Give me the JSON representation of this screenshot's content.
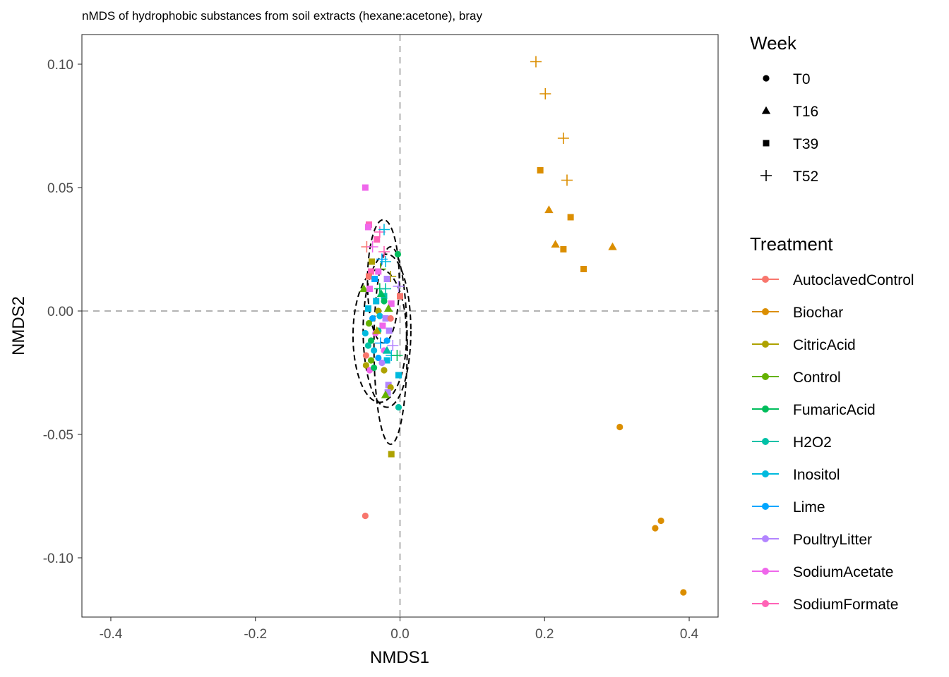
{
  "chart_data": {
    "type": "scatter",
    "title": "nMDS of hydrophobic substances from soil extracts (hexane:acetone), bray",
    "xlabel": "NMDS1",
    "ylabel": "NMDS2",
    "xlim": [
      -0.44,
      0.44
    ],
    "ylim": [
      -0.124,
      0.112
    ],
    "x_ticks": [
      -0.4,
      -0.2,
      0.0,
      0.2,
      0.4
    ],
    "x_tick_labels": [
      "-0.4",
      "-0.2",
      "0.0",
      "0.2",
      "0.4"
    ],
    "y_ticks": [
      -0.1,
      -0.05,
      0.0,
      0.05,
      0.1
    ],
    "y_tick_labels": [
      "-0.10",
      "-0.05",
      "0.00",
      "0.05",
      "0.10"
    ],
    "grid": false,
    "reference_lines": {
      "x": 0,
      "y": 0,
      "style": "dashed",
      "color": "#b3b3b3"
    },
    "legend_placement": "right",
    "shape_legend": {
      "title": "Week",
      "items": [
        {
          "label": "T0",
          "shape": "circle"
        },
        {
          "label": "T16",
          "shape": "triangle"
        },
        {
          "label": "T39",
          "shape": "square"
        },
        {
          "label": "T52",
          "shape": "plus"
        }
      ]
    },
    "color_legend": {
      "title": "Treatment",
      "items": [
        {
          "label": "AutoclavedControl",
          "color": "#F8766D"
        },
        {
          "label": "Biochar",
          "color": "#DB8E00"
        },
        {
          "label": "CitricAcid",
          "color": "#AEA200"
        },
        {
          "label": "Control",
          "color": "#64B200"
        },
        {
          "label": "FumaricAcid",
          "color": "#00BD5C"
        },
        {
          "label": "H2O2",
          "color": "#00C1A7"
        },
        {
          "label": "Inositol",
          "color": "#00BADE"
        },
        {
          "label": "Lime",
          "color": "#00A6FF"
        },
        {
          "label": "PoultryLitter",
          "color": "#B385FF"
        },
        {
          "label": "SodiumAcetate",
          "color": "#EF67EB"
        },
        {
          "label": "SodiumFormate",
          "color": "#FF63B6"
        }
      ]
    },
    "ellipses": [
      {
        "cx": -0.023,
        "cy": 0.012,
        "rx": 0.022,
        "ry": 0.025
      },
      {
        "cx": -0.018,
        "cy": -0.008,
        "rx": 0.033,
        "ry": 0.031
      },
      {
        "cx": -0.028,
        "cy": -0.01,
        "rx": 0.037,
        "ry": 0.027
      },
      {
        "cx": -0.013,
        "cy": -0.014,
        "rx": 0.023,
        "ry": 0.04
      }
    ],
    "points": [
      {
        "x": 0.188,
        "y": 0.101,
        "week": "T52",
        "treatment": "Biochar"
      },
      {
        "x": 0.201,
        "y": 0.088,
        "week": "T52",
        "treatment": "Biochar"
      },
      {
        "x": 0.226,
        "y": 0.07,
        "week": "T52",
        "treatment": "Biochar"
      },
      {
        "x": 0.231,
        "y": 0.053,
        "week": "T52",
        "treatment": "Biochar"
      },
      {
        "x": 0.194,
        "y": 0.057,
        "week": "T39",
        "treatment": "Biochar"
      },
      {
        "x": 0.236,
        "y": 0.038,
        "week": "T39",
        "treatment": "Biochar"
      },
      {
        "x": 0.226,
        "y": 0.025,
        "week": "T39",
        "treatment": "Biochar"
      },
      {
        "x": 0.254,
        "y": 0.017,
        "week": "T39",
        "treatment": "Biochar"
      },
      {
        "x": 0.206,
        "y": 0.041,
        "week": "T16",
        "treatment": "Biochar"
      },
      {
        "x": 0.215,
        "y": 0.027,
        "week": "T16",
        "treatment": "Biochar"
      },
      {
        "x": 0.294,
        "y": 0.026,
        "week": "T16",
        "treatment": "Biochar"
      },
      {
        "x": 0.304,
        "y": -0.047,
        "week": "T0",
        "treatment": "Biochar"
      },
      {
        "x": 0.361,
        "y": -0.085,
        "week": "T0",
        "treatment": "Biochar"
      },
      {
        "x": 0.353,
        "y": -0.088,
        "week": "T0",
        "treatment": "Biochar"
      },
      {
        "x": 0.392,
        "y": -0.114,
        "week": "T0",
        "treatment": "Biochar"
      },
      {
        "x": -0.048,
        "y": -0.083,
        "week": "T0",
        "treatment": "AutoclavedControl"
      },
      {
        "x": -0.012,
        "y": -0.058,
        "week": "T39",
        "treatment": "CitricAcid"
      },
      {
        "x": -0.048,
        "y": 0.05,
        "week": "T39",
        "treatment": "SodiumAcetate"
      },
      {
        "x": -0.043,
        "y": 0.035,
        "week": "T39",
        "treatment": "SodiumFormate"
      },
      {
        "x": -0.044,
        "y": 0.034,
        "week": "T39",
        "treatment": "SodiumAcetate"
      },
      {
        "x": -0.028,
        "y": 0.032,
        "week": "T52",
        "treatment": "SodiumFormate"
      },
      {
        "x": -0.022,
        "y": 0.033,
        "week": "T52",
        "treatment": "Inositol"
      },
      {
        "x": -0.032,
        "y": 0.029,
        "week": "T39",
        "treatment": "SodiumFormate"
      },
      {
        "x": -0.046,
        "y": 0.026,
        "week": "T52",
        "treatment": "AutoclavedControl"
      },
      {
        "x": -0.038,
        "y": 0.026,
        "week": "T52",
        "treatment": "SodiumAcetate"
      },
      {
        "x": -0.022,
        "y": 0.024,
        "week": "T52",
        "treatment": "SodiumFormate"
      },
      {
        "x": -0.025,
        "y": 0.021,
        "week": "T52",
        "treatment": "Lime"
      },
      {
        "x": -0.02,
        "y": 0.02,
        "week": "T52",
        "treatment": "Inositol"
      },
      {
        "x": -0.003,
        "y": 0.023,
        "week": "T0",
        "treatment": "FumaricAcid"
      },
      {
        "x": -0.039,
        "y": 0.02,
        "week": "T39",
        "treatment": "CitricAcid"
      },
      {
        "x": -0.027,
        "y": 0.017,
        "week": "T52",
        "treatment": "Control"
      },
      {
        "x": -0.03,
        "y": 0.016,
        "week": "T39",
        "treatment": "SodiumAcetate"
      },
      {
        "x": -0.04,
        "y": 0.016,
        "week": "T39",
        "treatment": "SodiumFormate"
      },
      {
        "x": -0.043,
        "y": 0.014,
        "week": "T39",
        "treatment": "AutoclavedControl"
      },
      {
        "x": -0.013,
        "y": 0.014,
        "week": "T52",
        "treatment": "CitricAcid"
      },
      {
        "x": -0.018,
        "y": 0.013,
        "week": "T39",
        "treatment": "PoultryLitter"
      },
      {
        "x": -0.035,
        "y": 0.013,
        "week": "T39",
        "treatment": "Lime"
      },
      {
        "x": -0.05,
        "y": 0.009,
        "week": "T16",
        "treatment": "Control"
      },
      {
        "x": -0.028,
        "y": 0.009,
        "week": "T52",
        "treatment": "FumaricAcid"
      },
      {
        "x": -0.02,
        "y": 0.009,
        "week": "T52",
        "treatment": "H2O2"
      },
      {
        "x": -0.002,
        "y": 0.01,
        "week": "T52",
        "treatment": "PoultryLitter"
      },
      {
        "x": -0.042,
        "y": 0.009,
        "week": "T39",
        "treatment": "SodiumAcetate"
      },
      {
        "x": -0.022,
        "y": 0.006,
        "week": "T39",
        "treatment": "H2O2"
      },
      {
        "x": -0.033,
        "y": 0.004,
        "week": "T39",
        "treatment": "Inositol"
      },
      {
        "x": -0.022,
        "y": 0.004,
        "week": "T0",
        "treatment": "FumaricAcid"
      },
      {
        "x": -0.012,
        "y": 0.003,
        "week": "T39",
        "treatment": "SodiumAcetate"
      },
      {
        "x": 0.0,
        "y": 0.006,
        "week": "T39",
        "treatment": "AutoclavedControl"
      },
      {
        "x": -0.044,
        "y": 0.001,
        "week": "T39",
        "treatment": "Inositol"
      },
      {
        "x": -0.03,
        "y": 0.0,
        "week": "T0",
        "treatment": "CitricAcid"
      },
      {
        "x": -0.016,
        "y": 0.001,
        "week": "T16",
        "treatment": "Control"
      },
      {
        "x": -0.028,
        "y": -0.002,
        "week": "T0",
        "treatment": "Inositol"
      },
      {
        "x": -0.038,
        "y": -0.003,
        "week": "T0",
        "treatment": "Lime"
      },
      {
        "x": -0.02,
        "y": -0.003,
        "week": "T39",
        "treatment": "PoultryLitter"
      },
      {
        "x": -0.013,
        "y": -0.003,
        "week": "T0",
        "treatment": "AutoclavedControl"
      },
      {
        "x": -0.043,
        "y": -0.005,
        "week": "T0",
        "treatment": "Control"
      },
      {
        "x": -0.024,
        "y": -0.006,
        "week": "T39",
        "treatment": "SodiumAcetate"
      },
      {
        "x": -0.03,
        "y": -0.008,
        "week": "T0",
        "treatment": "H2O2"
      },
      {
        "x": -0.015,
        "y": -0.008,
        "week": "T39",
        "treatment": "PoultryLitter"
      },
      {
        "x": -0.048,
        "y": -0.009,
        "week": "T0",
        "treatment": "Inositol"
      },
      {
        "x": -0.034,
        "y": -0.009,
        "week": "T0",
        "treatment": "SodiumAcetate"
      },
      {
        "x": -0.04,
        "y": -0.012,
        "week": "T0",
        "treatment": "FumaricAcid"
      },
      {
        "x": -0.018,
        "y": -0.012,
        "week": "T0",
        "treatment": "Lime"
      },
      {
        "x": -0.027,
        "y": -0.013,
        "week": "T52",
        "treatment": "Lime"
      },
      {
        "x": -0.044,
        "y": -0.014,
        "week": "T0",
        "treatment": "H2O2"
      },
      {
        "x": -0.01,
        "y": -0.014,
        "week": "T52",
        "treatment": "PoultryLitter"
      },
      {
        "x": -0.036,
        "y": -0.016,
        "week": "T0",
        "treatment": "Inositol"
      },
      {
        "x": -0.022,
        "y": -0.016,
        "week": "T0",
        "treatment": "SodiumAcetate"
      },
      {
        "x": -0.047,
        "y": -0.018,
        "week": "T0",
        "treatment": "AutoclavedControl"
      },
      {
        "x": -0.012,
        "y": -0.018,
        "week": "T52",
        "treatment": "Inositol"
      },
      {
        "x": -0.004,
        "y": -0.018,
        "week": "T52",
        "treatment": "FumaricAcid"
      },
      {
        "x": -0.03,
        "y": -0.019,
        "week": "T0",
        "treatment": "Lime"
      },
      {
        "x": -0.04,
        "y": -0.02,
        "week": "T0",
        "treatment": "Control"
      },
      {
        "x": -0.018,
        "y": -0.02,
        "week": "T39",
        "treatment": "Inositol"
      },
      {
        "x": -0.025,
        "y": -0.021,
        "week": "T0",
        "treatment": "PoultryLitter"
      },
      {
        "x": -0.047,
        "y": -0.022,
        "week": "T0",
        "treatment": "CitricAcid"
      },
      {
        "x": -0.022,
        "y": -0.024,
        "week": "T0",
        "treatment": "CitricAcid"
      },
      {
        "x": -0.042,
        "y": -0.024,
        "week": "T0",
        "treatment": "SodiumAcetate"
      },
      {
        "x": -0.036,
        "y": -0.023,
        "week": "T0",
        "treatment": "FumaricAcid"
      },
      {
        "x": -0.002,
        "y": -0.026,
        "week": "T39",
        "treatment": "Inositol"
      },
      {
        "x": -0.016,
        "y": -0.03,
        "week": "T39",
        "treatment": "PoultryLitter"
      },
      {
        "x": -0.013,
        "y": -0.031,
        "week": "T0",
        "treatment": "CitricAcid"
      },
      {
        "x": -0.017,
        "y": -0.033,
        "week": "T39",
        "treatment": "PoultryLitter"
      },
      {
        "x": -0.02,
        "y": -0.034,
        "week": "T16",
        "treatment": "Control"
      },
      {
        "x": -0.002,
        "y": -0.039,
        "week": "T0",
        "treatment": "H2O2"
      },
      {
        "x": -0.032,
        "y": -0.008,
        "week": "T16",
        "treatment": "CitricAcid"
      },
      {
        "x": -0.026,
        "y": 0.007,
        "week": "T16",
        "treatment": "FumaricAcid"
      },
      {
        "x": -0.018,
        "y": -0.016,
        "week": "T16",
        "treatment": "H2O2"
      }
    ]
  }
}
